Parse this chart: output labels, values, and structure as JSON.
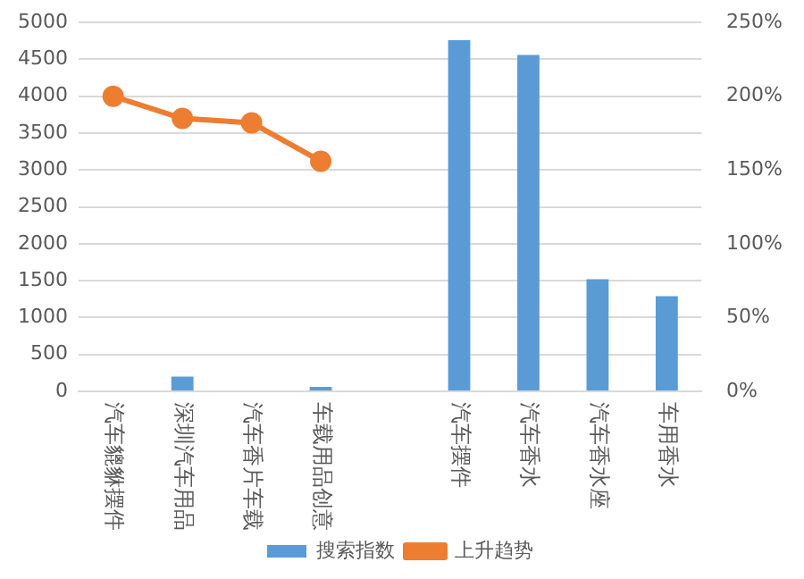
{
  "chart_data": {
    "type": "bar",
    "categories": [
      "汽车貔貅摆件",
      "深圳汽车用品",
      "汽车香片车载",
      "车载用品创意",
      null,
      "汽车摆件",
      "汽车香水",
      "汽车香水座",
      "车用香水"
    ],
    "series": [
      {
        "name": "搜索指数",
        "color": "#5b9bd5",
        "values": [
          null,
          200,
          null,
          60,
          null,
          4760,
          4560,
          1520,
          1290
        ]
      },
      {
        "name": "上升趋势",
        "type": "line",
        "axis": "y2",
        "color": "#ed7d31",
        "values": [
          200,
          185,
          182,
          156,
          null,
          null,
          null,
          null,
          null
        ]
      }
    ],
    "ylim": [
      0,
      5000
    ],
    "yticks": [
      0,
      500,
      1000,
      1500,
      2000,
      2500,
      3000,
      3500,
      4000,
      4500,
      5000
    ],
    "y2lim": [
      0,
      250
    ],
    "y2ticks": [
      {
        "value": 0,
        "label": "0%"
      },
      {
        "value": 50,
        "label": "50%"
      },
      {
        "value": 100,
        "label": "100%"
      },
      {
        "value": 150,
        "label": "150%"
      },
      {
        "value": 200,
        "label": "200%"
      },
      {
        "value": 250,
        "label": "250%"
      }
    ],
    "grid": "y",
    "legend": "bottom",
    "marker": "circle"
  }
}
